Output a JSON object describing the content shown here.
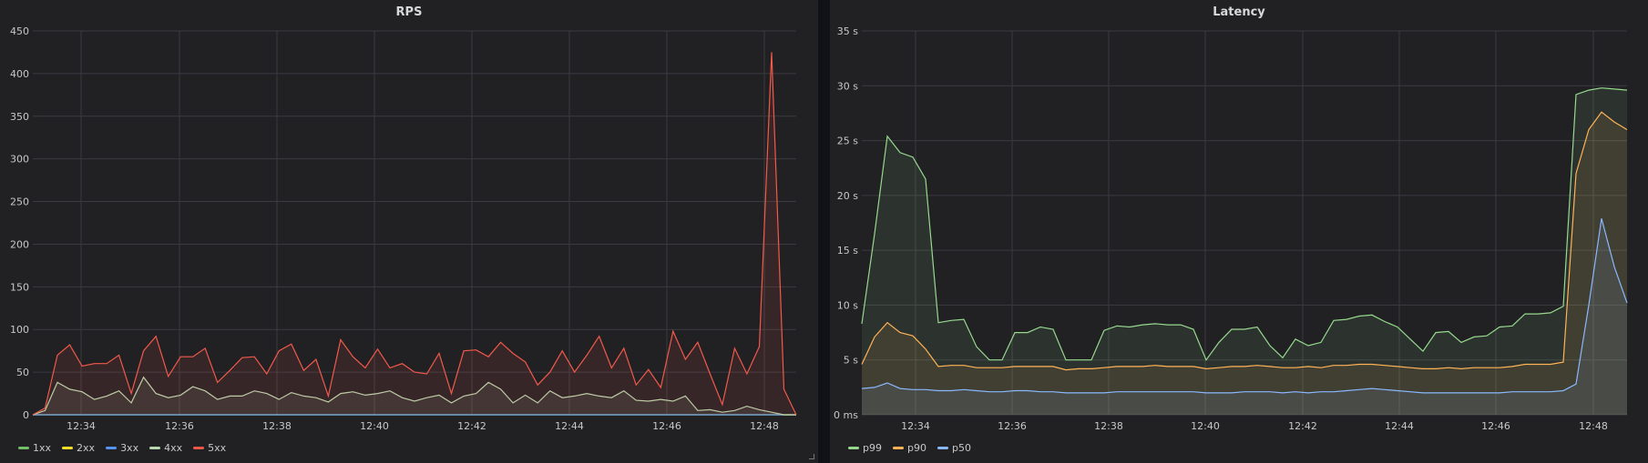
{
  "chart_data": [
    {
      "type": "area",
      "title": "RPS",
      "ylim": [
        0,
        450
      ],
      "y_ticks": [
        "0",
        "50",
        "100",
        "150",
        "200",
        "250",
        "300",
        "350",
        "400",
        "450"
      ],
      "x_ticks": [
        "12:34",
        "12:36",
        "12:38",
        "12:40",
        "12:42",
        "12:44",
        "12:46",
        "12:48"
      ],
      "grid": true,
      "legend_position": "bottom-left",
      "series": [
        {
          "name": "1xx",
          "color": "#73bf69",
          "values": [
            0,
            0,
            0,
            0,
            0,
            0,
            0,
            0,
            0,
            0,
            0,
            0,
            0,
            0,
            0,
            0,
            0,
            0,
            0,
            0,
            0,
            0,
            0,
            0,
            0,
            0,
            0,
            0,
            0,
            0,
            0,
            0,
            0,
            0,
            0,
            0,
            0,
            0,
            0,
            0,
            0,
            0,
            0,
            0,
            0,
            0,
            0,
            0,
            0,
            0,
            0,
            0,
            0,
            0,
            0,
            0,
            0,
            0,
            0,
            0,
            0,
            0,
            0,
            0,
            0,
            0,
            0,
            0,
            0,
            0,
            0,
            0,
            0,
            0,
            0,
            0,
            0,
            0,
            0,
            0,
            0,
            0,
            0,
            0,
            0,
            0,
            0,
            0,
            0,
            0,
            0,
            0,
            0,
            0,
            0,
            0,
            0,
            0,
            0,
            0,
            0
          ]
        },
        {
          "name": "2xx",
          "color": "#fade2a",
          "values": [
            0,
            0,
            0,
            0,
            0,
            0,
            0,
            0,
            0,
            0,
            0,
            0,
            0,
            0,
            0,
            0,
            0,
            0,
            0,
            0,
            0,
            0,
            0,
            0,
            0,
            0,
            0,
            0,
            0,
            0,
            0,
            0,
            0,
            0,
            0,
            0,
            0,
            0,
            0,
            0,
            0,
            0,
            0,
            0,
            0,
            0,
            0,
            0,
            0,
            0,
            0,
            0,
            0,
            0,
            0,
            0,
            0,
            0,
            0,
            0,
            0,
            0,
            0,
            0,
            0,
            0,
            0,
            0,
            0,
            0,
            0,
            0,
            0,
            0,
            0,
            0,
            0,
            0,
            0,
            0,
            0,
            0,
            0,
            0,
            0,
            0,
            0,
            0,
            0,
            0,
            0,
            0,
            0,
            0,
            0,
            0,
            0,
            0,
            0,
            0,
            0
          ]
        },
        {
          "name": "3xx",
          "color": "#5794f2",
          "values": [
            0,
            0,
            0,
            0,
            0,
            0,
            0,
            0,
            0,
            0,
            0,
            0,
            0,
            0,
            0,
            0,
            0,
            0,
            0,
            0,
            0,
            0,
            0,
            0,
            0,
            0,
            0,
            0,
            0,
            0,
            0,
            0,
            0,
            0,
            0,
            0,
            0,
            0,
            0,
            0,
            0,
            0,
            0,
            0,
            0,
            0,
            0,
            0,
            0,
            0,
            0,
            0,
            0,
            0,
            0,
            0,
            0,
            0,
            0,
            0,
            0,
            0,
            0,
            0,
            0,
            0,
            0,
            0,
            0,
            0,
            0,
            0,
            0,
            0,
            0,
            0,
            0,
            0,
            0,
            0,
            0,
            0,
            0,
            0,
            0,
            0,
            0,
            0,
            0,
            0,
            0,
            0,
            0,
            0,
            0,
            0,
            0,
            0,
            0,
            0,
            0
          ]
        },
        {
          "name": "4xx",
          "color": "#b8d8b0",
          "values": [
            0,
            5,
            38,
            30,
            27,
            18,
            22,
            28,
            14,
            44,
            25,
            20,
            23,
            33,
            28,
            18,
            22,
            22,
            28,
            25,
            18,
            26,
            22,
            20,
            15,
            25,
            27,
            23,
            25,
            28,
            20,
            16,
            20,
            23,
            14,
            22,
            25,
            38,
            30,
            14,
            23,
            14,
            28,
            20,
            22,
            25,
            22,
            20,
            28,
            17,
            16,
            18,
            16,
            22,
            5,
            6,
            3,
            5,
            10,
            6,
            3,
            0,
            0
          ]
        },
        {
          "name": "5xx",
          "color": "#f2594a",
          "values": [
            0,
            8,
            70,
            82,
            57,
            60,
            60,
            70,
            25,
            75,
            92,
            45,
            68,
            68,
            78,
            38,
            52,
            67,
            68,
            48,
            75,
            83,
            52,
            65,
            22,
            88,
            68,
            55,
            77,
            55,
            60,
            50,
            48,
            72,
            25,
            75,
            76,
            68,
            85,
            72,
            62,
            35,
            50,
            75,
            50,
            70,
            92,
            55,
            78,
            35,
            53,
            32,
            98,
            65,
            85,
            48,
            12,
            78,
            48,
            80,
            425,
            30,
            0
          ]
        }
      ]
    },
    {
      "type": "area",
      "title": "Latency",
      "ylim": [
        0,
        35
      ],
      "y_ticks": [
        "0 ms",
        "5 s",
        "10 s",
        "15 s",
        "20 s",
        "25 s",
        "30 s",
        "35 s"
      ],
      "x_ticks": [
        "12:34",
        "12:36",
        "12:38",
        "12:40",
        "12:42",
        "12:44",
        "12:46",
        "12:48"
      ],
      "grid": true,
      "legend_position": "bottom-left",
      "series": [
        {
          "name": "p99",
          "color": "#96d98d",
          "values": [
            8.3,
            16.5,
            25.4,
            23.9,
            23.5,
            21.5,
            8.4,
            8.6,
            8.7,
            6.2,
            5.0,
            5.0,
            7.5,
            7.5,
            8.0,
            7.8,
            5.0,
            5.0,
            5.0,
            7.7,
            8.1,
            8.0,
            8.2,
            8.3,
            8.2,
            8.2,
            7.8,
            5.0,
            6.6,
            7.8,
            7.8,
            8.0,
            6.3,
            5.2,
            6.9,
            6.3,
            6.6,
            8.6,
            8.7,
            9.0,
            9.1,
            8.5,
            8.0,
            6.9,
            5.8,
            7.5,
            7.6,
            6.6,
            7.1,
            7.2,
            8.0,
            8.1,
            9.2,
            9.2,
            9.3,
            9.9,
            29.2,
            29.6,
            29.8,
            29.7,
            29.6
          ]
        },
        {
          "name": "p90",
          "color": "#ffb357",
          "values": [
            4.6,
            7.1,
            8.4,
            7.5,
            7.2,
            6.0,
            4.4,
            4.5,
            4.5,
            4.3,
            4.3,
            4.3,
            4.4,
            4.4,
            4.4,
            4.4,
            4.1,
            4.2,
            4.2,
            4.3,
            4.4,
            4.4,
            4.4,
            4.5,
            4.4,
            4.4,
            4.4,
            4.2,
            4.3,
            4.4,
            4.4,
            4.5,
            4.4,
            4.3,
            4.3,
            4.4,
            4.3,
            4.5,
            4.5,
            4.6,
            4.6,
            4.5,
            4.4,
            4.3,
            4.2,
            4.2,
            4.3,
            4.2,
            4.3,
            4.3,
            4.3,
            4.4,
            4.6,
            4.6,
            4.6,
            4.8,
            22.0,
            26.0,
            27.6,
            26.7,
            26.0
          ]
        },
        {
          "name": "p50",
          "color": "#8ab8ff",
          "values": [
            2.4,
            2.5,
            2.9,
            2.4,
            2.3,
            2.3,
            2.2,
            2.2,
            2.3,
            2.2,
            2.1,
            2.1,
            2.2,
            2.2,
            2.1,
            2.1,
            2.0,
            2.0,
            2.0,
            2.0,
            2.1,
            2.1,
            2.1,
            2.1,
            2.1,
            2.1,
            2.1,
            2.0,
            2.0,
            2.0,
            2.1,
            2.1,
            2.1,
            2.0,
            2.1,
            2.0,
            2.1,
            2.1,
            2.2,
            2.3,
            2.4,
            2.3,
            2.2,
            2.1,
            2.0,
            2.0,
            2.0,
            2.0,
            2.0,
            2.0,
            2.0,
            2.1,
            2.1,
            2.1,
            2.1,
            2.2,
            2.8,
            10.0,
            17.9,
            13.5,
            10.2
          ]
        }
      ]
    }
  ]
}
